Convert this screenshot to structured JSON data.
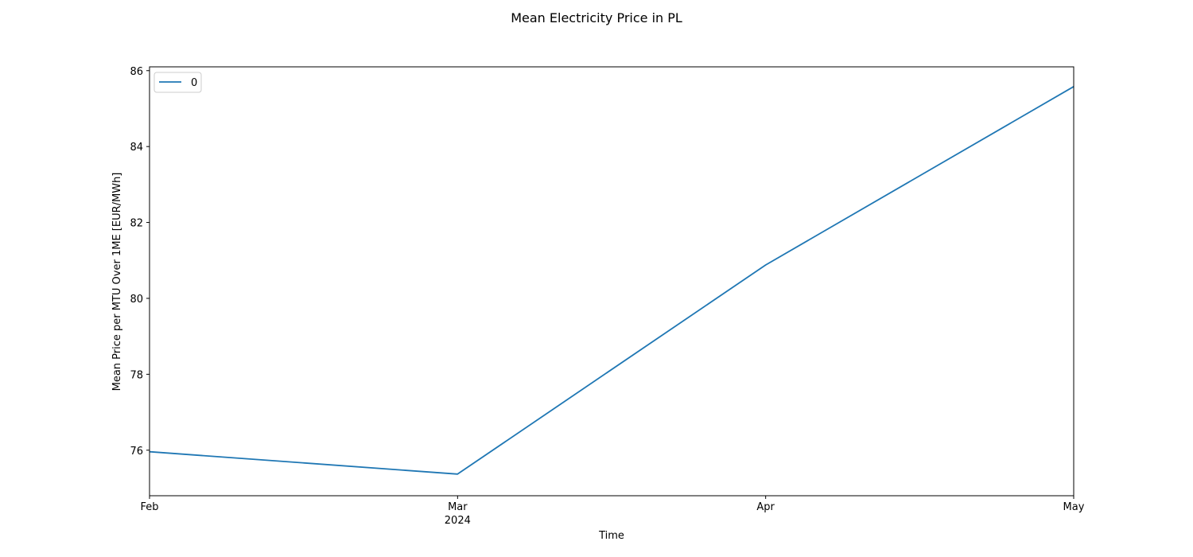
{
  "chart_data": {
    "type": "line",
    "title": "Mean Electricity Price in PL",
    "xlabel": "Time",
    "ylabel": "Mean Price per MTU Over 1ME [EUR/MWh]",
    "x": [
      "2024-02",
      "2024-03",
      "2024-04",
      "2024-05"
    ],
    "x_tick_labels": [
      "Feb",
      "Mar",
      "Apr",
      "May"
    ],
    "x_year_label": "2024",
    "y_ticks": [
      76,
      78,
      80,
      82,
      84,
      86
    ],
    "ylim": [
      74.8,
      86.1
    ],
    "grid": false,
    "legend": {
      "placement": "top-left",
      "entries": [
        "0"
      ]
    },
    "series": [
      {
        "name": "0",
        "color": "#1f77b4",
        "values": [
          75.96,
          75.37,
          80.88,
          85.58
        ]
      }
    ]
  }
}
